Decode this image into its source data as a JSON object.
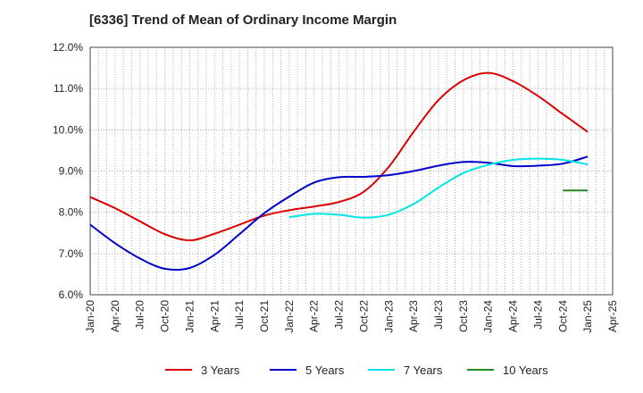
{
  "chart_data": {
    "type": "line",
    "title": "[6336]  Trend of Mean of Ordinary Income Margin",
    "xlabel": "",
    "ylabel": "",
    "x_ticks": [
      "Jan-20",
      "Apr-20",
      "Jul-20",
      "Oct-20",
      "Jan-21",
      "Apr-21",
      "Jul-21",
      "Oct-21",
      "Jan-22",
      "Apr-22",
      "Jul-22",
      "Oct-22",
      "Jan-23",
      "Apr-23",
      "Jul-23",
      "Oct-23",
      "Jan-24",
      "Apr-24",
      "Jul-24",
      "Oct-24",
      "Jan-25",
      "Apr-25"
    ],
    "y_ticks": [
      "6.0%",
      "7.0%",
      "8.0%",
      "9.0%",
      "10.0%",
      "11.0%",
      "12.0%"
    ],
    "ylim": [
      6.0,
      12.0
    ],
    "grid": true,
    "legend_position": "bottom",
    "series": [
      {
        "name": "3 Years",
        "color": "#dd0000",
        "x": [
          "Jan-20",
          "Apr-20",
          "Jul-20",
          "Oct-20",
          "Jan-21",
          "Apr-21",
          "Jul-21",
          "Oct-21",
          "Jan-22",
          "Apr-22",
          "Jul-22",
          "Oct-22",
          "Jan-23",
          "Apr-23",
          "Jul-23",
          "Oct-23",
          "Jan-24",
          "Apr-24",
          "Jul-24",
          "Oct-24",
          "Jan-25"
        ],
        "values": [
          8.37,
          8.1,
          7.78,
          7.47,
          7.32,
          7.48,
          7.7,
          7.92,
          8.05,
          8.14,
          8.25,
          8.5,
          9.1,
          9.95,
          10.72,
          11.2,
          11.38,
          11.18,
          10.82,
          10.38,
          9.95
        ]
      },
      {
        "name": "5 Years",
        "color": "#0000cc",
        "x": [
          "Jan-20",
          "Apr-20",
          "Jul-20",
          "Oct-20",
          "Jan-21",
          "Apr-21",
          "Jul-21",
          "Oct-21",
          "Jan-22",
          "Apr-22",
          "Jul-22",
          "Oct-22",
          "Jan-23",
          "Apr-23",
          "Jul-23",
          "Oct-23",
          "Jan-24",
          "Apr-24",
          "Jul-24",
          "Oct-24",
          "Jan-25"
        ],
        "values": [
          7.7,
          7.25,
          6.88,
          6.63,
          6.65,
          6.97,
          7.47,
          7.98,
          8.38,
          8.72,
          8.85,
          8.86,
          8.9,
          9.0,
          9.13,
          9.22,
          9.2,
          9.12,
          9.13,
          9.18,
          9.35
        ]
      },
      {
        "name": "7 Years",
        "color": "#00e5e5",
        "x": [
          "Jan-22",
          "Apr-22",
          "Jul-22",
          "Oct-22",
          "Jan-23",
          "Apr-23",
          "Jul-23",
          "Oct-23",
          "Jan-24",
          "Apr-24",
          "Jul-24",
          "Oct-24",
          "Jan-25"
        ],
        "values": [
          7.88,
          7.96,
          7.94,
          7.87,
          7.94,
          8.2,
          8.6,
          8.95,
          9.15,
          9.27,
          9.3,
          9.27,
          9.16
        ]
      },
      {
        "name": "10 Years",
        "color": "#228822",
        "x": [
          "Oct-24",
          "Jan-25"
        ],
        "values": [
          8.53,
          8.53
        ]
      }
    ]
  }
}
